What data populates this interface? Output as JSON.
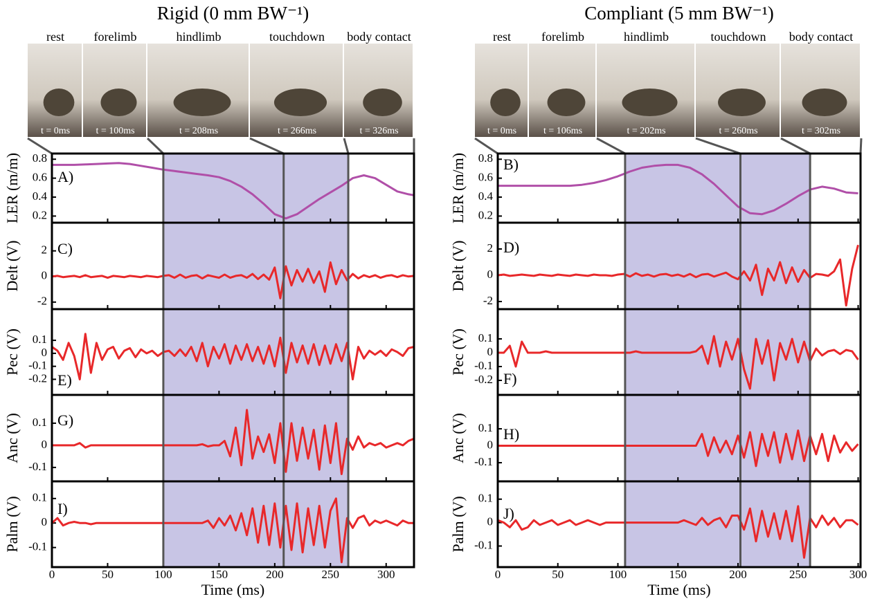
{
  "chart_data": [
    {
      "type": "line",
      "title": "Rigid (0 mm BW⁻¹)",
      "photo_labels": [
        "rest",
        "forelimb",
        "hindlimb",
        "touchdown",
        "body contact"
      ],
      "time_labels": [
        "t = 0ms",
        "t = 100ms",
        "t = 208ms",
        "t = 266ms",
        "t = 326ms"
      ],
      "phase_lines": [
        100,
        208,
        266
      ],
      "shade_color": "#c8c5e5",
      "panel_label": "A)",
      "ylabel": "LER (m/m)",
      "color": "#b04fa8",
      "x": [
        0,
        10,
        20,
        30,
        40,
        50,
        60,
        70,
        80,
        90,
        100,
        110,
        120,
        130,
        140,
        150,
        160,
        170,
        180,
        190,
        200,
        210,
        220,
        230,
        240,
        250,
        260,
        270,
        280,
        290,
        300,
        310,
        320,
        325
      ],
      "values": [
        0.74,
        0.74,
        0.74,
        0.745,
        0.75,
        0.755,
        0.76,
        0.75,
        0.73,
        0.71,
        0.69,
        0.675,
        0.66,
        0.645,
        0.63,
        0.61,
        0.57,
        0.51,
        0.43,
        0.33,
        0.22,
        0.175,
        0.22,
        0.3,
        0.38,
        0.45,
        0.52,
        0.6,
        0.63,
        0.6,
        0.53,
        0.46,
        0.43,
        0.42
      ],
      "xlim": [
        0,
        325
      ],
      "ylim": [
        0.13,
        0.86
      ],
      "yticks": [
        0.2,
        0.4,
        0.6,
        0.8
      ]
    },
    {
      "type": "line",
      "panel_label": "C)",
      "ylabel": "Delt (V)",
      "color": "#e8282a",
      "x": [
        0,
        5,
        10,
        15,
        20,
        25,
        30,
        35,
        40,
        45,
        50,
        55,
        60,
        65,
        70,
        75,
        80,
        85,
        90,
        95,
        100,
        105,
        110,
        115,
        120,
        125,
        130,
        135,
        140,
        145,
        150,
        155,
        160,
        165,
        170,
        175,
        180,
        185,
        190,
        195,
        200,
        205,
        210,
        215,
        220,
        225,
        230,
        235,
        240,
        245,
        250,
        255,
        260,
        265,
        270,
        275,
        280,
        285,
        290,
        295,
        300,
        305,
        310,
        315,
        320,
        325
      ],
      "values": [
        0,
        0.05,
        -0.05,
        0,
        0.05,
        -0.05,
        0.1,
        -0.05,
        0,
        0.05,
        -0.1,
        0.05,
        0,
        -0.05,
        0.05,
        0,
        -0.05,
        0.05,
        0,
        -0.05,
        0.05,
        0.1,
        -0.1,
        0.15,
        -0.1,
        0.05,
        0.1,
        -0.15,
        0.1,
        0,
        -0.1,
        0.15,
        -0.1,
        0.05,
        0.1,
        -0.1,
        0.2,
        -0.2,
        0.15,
        -0.25,
        0.7,
        -1.7,
        0.8,
        -0.7,
        0.5,
        -0.4,
        0.6,
        -0.5,
        0.4,
        -1.2,
        1.1,
        -0.6,
        0.5,
        -0.3,
        0.2,
        -0.15,
        0.1,
        -0.05,
        0.1,
        -0.1,
        0.05,
        0.1,
        -0.05,
        0.1,
        0,
        0.05
      ],
      "xlim": [
        0,
        325
      ],
      "ylim": [
        -2.55,
        4.2
      ],
      "yticks": [
        -2,
        0,
        2
      ]
    },
    {
      "type": "line",
      "panel_label": "E)",
      "ylabel": "Pec (V)",
      "color": "#e8282a",
      "x": [
        0,
        5,
        10,
        15,
        20,
        25,
        30,
        35,
        40,
        45,
        50,
        55,
        60,
        65,
        70,
        75,
        80,
        85,
        90,
        95,
        100,
        105,
        110,
        115,
        120,
        125,
        130,
        135,
        140,
        145,
        150,
        155,
        160,
        165,
        170,
        175,
        180,
        185,
        190,
        195,
        200,
        205,
        210,
        215,
        220,
        225,
        230,
        235,
        240,
        245,
        250,
        255,
        260,
        265,
        270,
        275,
        280,
        285,
        290,
        295,
        300,
        305,
        310,
        315,
        320,
        325
      ],
      "values": [
        0.05,
        0.02,
        -0.05,
        0.08,
        -0.02,
        -0.2,
        0.15,
        -0.15,
        0.08,
        -0.05,
        0.03,
        0.05,
        -0.04,
        0.02,
        0.04,
        -0.03,
        0.03,
        0,
        0.02,
        -0.02,
        0.01,
        0.02,
        -0.02,
        0.03,
        -0.02,
        0.05,
        -0.06,
        0.08,
        -0.1,
        0.05,
        -0.04,
        0.07,
        -0.08,
        0.06,
        -0.05,
        0.07,
        -0.06,
        0.05,
        -0.08,
        0.06,
        -0.1,
        0.12,
        -0.15,
        0.08,
        -0.07,
        0.06,
        -0.08,
        0.07,
        -0.09,
        0.06,
        -0.08,
        0.07,
        -0.06,
        0.08,
        -0.2,
        0.05,
        -0.04,
        0.02,
        -0.01,
        0.02,
        -0.02,
        0.03,
        0.01,
        -0.02,
        0.04,
        0.05
      ],
      "xlim": [
        0,
        325
      ],
      "ylim": [
        -0.32,
        0.34
      ],
      "yticks": [
        -0.2,
        -0.1,
        0,
        0.1
      ]
    },
    {
      "type": "line",
      "panel_label": "G)",
      "ylabel": "Anc (V)",
      "color": "#e8282a",
      "x": [
        0,
        5,
        10,
        15,
        20,
        25,
        30,
        35,
        40,
        45,
        50,
        55,
        60,
        65,
        70,
        75,
        80,
        85,
        90,
        95,
        100,
        105,
        110,
        115,
        120,
        125,
        130,
        135,
        140,
        145,
        150,
        155,
        160,
        165,
        170,
        175,
        180,
        185,
        190,
        195,
        200,
        205,
        210,
        215,
        220,
        225,
        230,
        235,
        240,
        245,
        250,
        255,
        260,
        265,
        270,
        275,
        280,
        285,
        290,
        295,
        300,
        305,
        310,
        315,
        320,
        325
      ],
      "values": [
        0,
        0,
        0,
        0,
        0,
        0.01,
        -0.01,
        0,
        0,
        0,
        0,
        0,
        0,
        0,
        0,
        0,
        0,
        0,
        0,
        0,
        0,
        0,
        0,
        0,
        0,
        0,
        0,
        0.005,
        -0.005,
        0,
        0,
        0.02,
        -0.05,
        0.08,
        -0.09,
        0.16,
        -0.06,
        0.04,
        -0.03,
        0.05,
        -0.08,
        0.1,
        -0.12,
        0.1,
        -0.07,
        0.08,
        -0.06,
        0.07,
        -0.11,
        0.09,
        -0.08,
        0.1,
        -0.13,
        0.03,
        -0.02,
        0.04,
        -0.01,
        0.01,
        0,
        0.01,
        -0.01,
        0,
        0.01,
        0,
        0.02,
        0.03
      ],
      "xlim": [
        0,
        325
      ],
      "ylim": [
        -0.163,
        0.228
      ],
      "yticks": [
        -0.1,
        0,
        0.1
      ]
    },
    {
      "type": "line",
      "panel_label": "I)",
      "ylabel": "Palm (V)",
      "xlabel": "Time (ms)",
      "color": "#e8282a",
      "x": [
        0,
        5,
        10,
        15,
        20,
        25,
        30,
        35,
        40,
        45,
        50,
        55,
        60,
        65,
        70,
        75,
        80,
        85,
        90,
        95,
        100,
        105,
        110,
        115,
        120,
        125,
        130,
        135,
        140,
        145,
        150,
        155,
        160,
        165,
        170,
        175,
        180,
        185,
        190,
        195,
        200,
        205,
        210,
        215,
        220,
        225,
        230,
        235,
        240,
        245,
        250,
        255,
        260,
        265,
        270,
        275,
        280,
        285,
        290,
        295,
        300,
        305,
        310,
        315,
        320,
        325
      ],
      "values": [
        0,
        0.02,
        -0.01,
        0,
        0.005,
        0,
        0,
        -0.005,
        0,
        0,
        0,
        0,
        0,
        0,
        0,
        0,
        0,
        0,
        0,
        0,
        0,
        0,
        0,
        0,
        0,
        0,
        0,
        0,
        0.01,
        -0.02,
        0.02,
        -0.01,
        0.03,
        -0.03,
        0.04,
        -0.05,
        0.06,
        -0.08,
        0.07,
        -0.09,
        0.08,
        -0.1,
        0.07,
        -0.11,
        0.08,
        -0.12,
        0.06,
        -0.09,
        0.07,
        -0.1,
        0.05,
        0.1,
        -0.16,
        0.02,
        -0.02,
        0.02,
        0.03,
        -0.01,
        0.01,
        0,
        0.01,
        0,
        -0.01,
        0.01,
        0,
        0
      ],
      "xlim": [
        0,
        325
      ],
      "ylim": [
        -0.18,
        0.17
      ],
      "yticks": [
        -0.1,
        0,
        0.1
      ],
      "xticks": [
        0,
        50,
        100,
        150,
        200,
        250,
        300
      ]
    },
    {
      "type": "line",
      "title": "Compliant (5 mm BW⁻¹)",
      "photo_labels": [
        "rest",
        "forelimb",
        "hindlimb",
        "touchdown",
        "body contact"
      ],
      "time_labels": [
        "t = 0ms",
        "t = 106ms",
        "t = 202ms",
        "t = 260ms",
        "t = 302ms"
      ],
      "phase_lines": [
        106,
        202,
        260
      ],
      "shade_color": "#c8c5e5",
      "panel_label": "B)",
      "ylabel": "LER (m/m)",
      "color": "#b04fa8",
      "x": [
        0,
        10,
        20,
        30,
        40,
        50,
        60,
        70,
        80,
        90,
        100,
        110,
        120,
        130,
        140,
        150,
        160,
        170,
        180,
        190,
        200,
        210,
        220,
        230,
        240,
        250,
        260,
        270,
        280,
        290,
        300
      ],
      "values": [
        0.52,
        0.52,
        0.52,
        0.52,
        0.52,
        0.52,
        0.52,
        0.53,
        0.55,
        0.58,
        0.62,
        0.67,
        0.71,
        0.73,
        0.74,
        0.74,
        0.71,
        0.64,
        0.54,
        0.42,
        0.3,
        0.23,
        0.22,
        0.26,
        0.33,
        0.41,
        0.48,
        0.51,
        0.49,
        0.45,
        0.44
      ],
      "xlim": [
        0,
        302
      ],
      "ylim": [
        0.13,
        0.86
      ],
      "yticks": [
        0.2,
        0.4,
        0.6,
        0.8
      ]
    },
    {
      "type": "line",
      "panel_label": "D)",
      "ylabel": "Delt (V)",
      "color": "#e8282a",
      "x": [
        0,
        5,
        10,
        15,
        20,
        25,
        30,
        35,
        40,
        45,
        50,
        55,
        60,
        65,
        70,
        75,
        80,
        85,
        90,
        95,
        100,
        105,
        110,
        115,
        120,
        125,
        130,
        135,
        140,
        145,
        150,
        155,
        160,
        165,
        170,
        175,
        180,
        185,
        190,
        195,
        200,
        205,
        210,
        215,
        220,
        225,
        230,
        235,
        240,
        245,
        250,
        255,
        260,
        265,
        270,
        275,
        280,
        285,
        290,
        295,
        300
      ],
      "values": [
        0,
        0.05,
        -0.05,
        0,
        0.05,
        0,
        -0.05,
        0.05,
        0,
        -0.05,
        0.05,
        0,
        -0.05,
        0.05,
        0,
        -0.05,
        0.05,
        0,
        0,
        -0.05,
        0.05,
        0.1,
        -0.1,
        0.15,
        -0.05,
        0.05,
        -0.1,
        0.05,
        0.1,
        -0.05,
        0.05,
        -0.1,
        0.1,
        -0.15,
        0.05,
        0.1,
        -0.1,
        0.05,
        0.2,
        -0.1,
        -0.3,
        0.3,
        -0.4,
        0.8,
        -1.5,
        0.5,
        -0.4,
        1.0,
        -0.6,
        0.6,
        -0.5,
        0.4,
        -0.2,
        0.1,
        0.05,
        -0.05,
        0.3,
        1.2,
        -2.3,
        0.5,
        2.3
      ],
      "xlim": [
        0,
        302
      ],
      "ylim": [
        -2.58,
        4
      ],
      "yticks": [
        -2,
        0,
        2
      ]
    },
    {
      "type": "line",
      "panel_label": "F)",
      "ylabel": "Pec (V)",
      "color": "#e8282a",
      "x": [
        0,
        5,
        10,
        15,
        20,
        25,
        30,
        35,
        40,
        45,
        50,
        55,
        60,
        65,
        70,
        75,
        80,
        85,
        90,
        95,
        100,
        105,
        110,
        115,
        120,
        125,
        130,
        135,
        140,
        145,
        150,
        155,
        160,
        165,
        170,
        175,
        180,
        185,
        190,
        195,
        200,
        205,
        210,
        215,
        220,
        225,
        230,
        235,
        240,
        245,
        250,
        255,
        260,
        265,
        270,
        275,
        280,
        285,
        290,
        295,
        300
      ],
      "values": [
        0,
        0,
        0.05,
        -0.1,
        0.08,
        0,
        0,
        0,
        0.01,
        0,
        0,
        0,
        0,
        0,
        0,
        0,
        0,
        0,
        0,
        0,
        0,
        0,
        0,
        0.01,
        0,
        0,
        0,
        0,
        0,
        0,
        0,
        0,
        0,
        0.01,
        0.05,
        -0.08,
        0.12,
        -0.1,
        0.08,
        -0.05,
        0.1,
        -0.12,
        -0.26,
        0.1,
        -0.08,
        0.09,
        -0.2,
        0.07,
        -0.05,
        0.1,
        -0.07,
        0.08,
        -0.06,
        0.03,
        -0.02,
        0.01,
        0.02,
        -0.01,
        0.02,
        0.01,
        -0.05
      ],
      "xlim": [
        0,
        302
      ],
      "ylim": [
        -0.305,
        0.315
      ],
      "yticks": [
        -0.2,
        -0.1,
        0,
        0.1
      ]
    },
    {
      "type": "line",
      "panel_label": "H)",
      "ylabel": "Anc (V)",
      "color": "#e8282a",
      "x": [
        0,
        5,
        10,
        15,
        20,
        25,
        30,
        35,
        40,
        45,
        50,
        55,
        60,
        65,
        70,
        75,
        80,
        85,
        90,
        95,
        100,
        105,
        110,
        115,
        120,
        125,
        130,
        135,
        140,
        145,
        150,
        155,
        160,
        165,
        170,
        175,
        180,
        185,
        190,
        195,
        200,
        205,
        210,
        215,
        220,
        225,
        230,
        235,
        240,
        245,
        250,
        255,
        260,
        265,
        270,
        275,
        280,
        285,
        290,
        295,
        300
      ],
      "values": [
        0,
        0,
        0,
        0,
        0,
        0,
        0,
        0,
        0,
        0,
        0,
        0,
        0,
        0,
        0,
        0,
        0,
        0,
        0,
        0,
        0,
        0,
        0,
        0,
        0,
        0,
        0,
        0,
        0,
        0,
        0,
        0,
        0,
        0,
        0.07,
        -0.06,
        0.05,
        -0.04,
        0.03,
        -0.05,
        0.06,
        -0.07,
        0.08,
        -0.12,
        0.07,
        -0.06,
        0.08,
        -0.1,
        0.07,
        -0.08,
        0.09,
        -0.09,
        0.06,
        -0.05,
        0.07,
        -0.09,
        0.06,
        -0.04,
        0.02,
        -0.03,
        0.01
      ],
      "xlim": [
        0,
        302
      ],
      "ylim": [
        -0.21,
        0.3
      ],
      "yticks": [
        -0.1,
        0,
        0.1
      ]
    },
    {
      "type": "line",
      "panel_label": "J)",
      "ylabel": "Palm (V)",
      "xlabel": "Time (ms)",
      "color": "#e8282a",
      "x": [
        0,
        5,
        10,
        15,
        20,
        25,
        30,
        35,
        40,
        45,
        50,
        55,
        60,
        65,
        70,
        75,
        80,
        85,
        90,
        95,
        100,
        105,
        110,
        115,
        120,
        125,
        130,
        135,
        140,
        145,
        150,
        155,
        160,
        165,
        170,
        175,
        180,
        185,
        190,
        195,
        200,
        205,
        210,
        215,
        220,
        225,
        230,
        235,
        240,
        245,
        250,
        255,
        260,
        265,
        270,
        275,
        280,
        285,
        290,
        295,
        300
      ],
      "values": [
        0.01,
        0,
        -0.02,
        0.01,
        -0.03,
        -0.02,
        0.01,
        -0.01,
        0,
        0.01,
        -0.01,
        0,
        0.01,
        -0.01,
        0,
        0.01,
        0,
        -0.01,
        0,
        0,
        0,
        0,
        0,
        0,
        0,
        0,
        0,
        0,
        0,
        0,
        0,
        0.01,
        0,
        -0.01,
        0.02,
        -0.01,
        0.01,
        0.02,
        -0.02,
        0.03,
        0.03,
        -0.03,
        0.06,
        -0.08,
        0.05,
        -0.06,
        0.04,
        -0.07,
        0.05,
        -0.08,
        0.07,
        -0.15,
        0.02,
        -0.02,
        0.03,
        -0.01,
        0.02,
        -0.02,
        0.01,
        0.01,
        -0.01
      ],
      "xlim": [
        0,
        302
      ],
      "ylim": [
        -0.19,
        0.176
      ],
      "yticks": [
        -0.1,
        0,
        0.1
      ],
      "xticks": [
        0,
        50,
        100,
        150,
        200,
        250,
        300
      ]
    }
  ]
}
